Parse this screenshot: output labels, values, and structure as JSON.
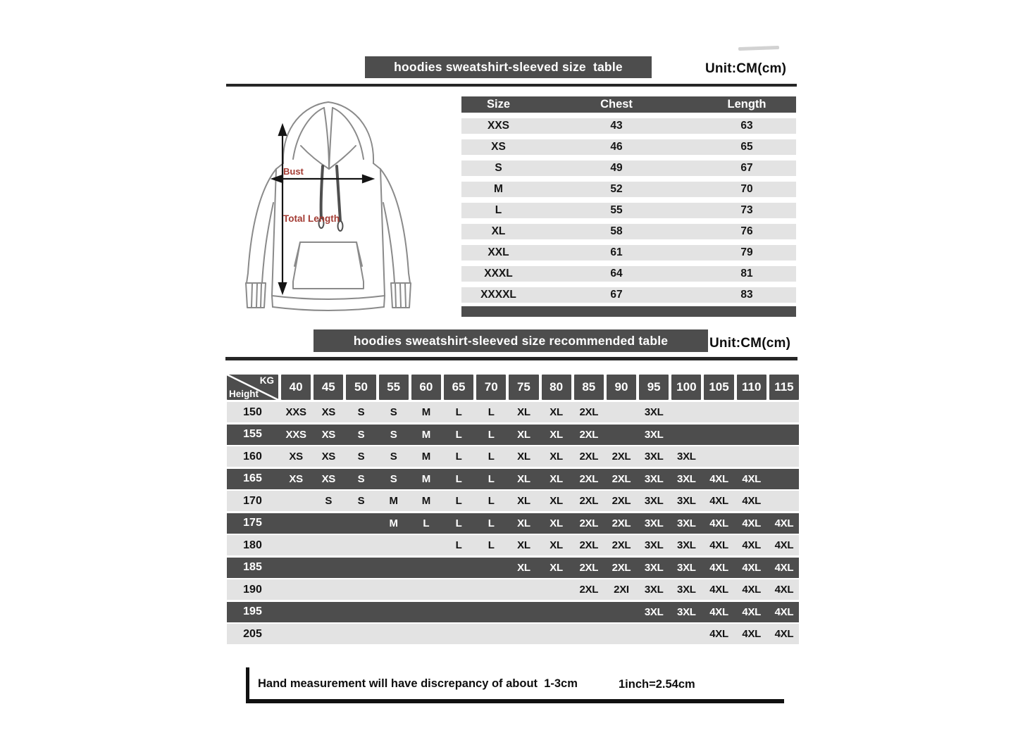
{
  "colors": {
    "dark_gray": "#4d4d4d",
    "light_row": "#e3e3e3",
    "line": "#262626",
    "red_label": "#a33b33"
  },
  "section1": {
    "title": "hoodies sweatshirt-sleeved size  table",
    "unit": "Unit:CM(cm)",
    "diagram": {
      "bust_label": "Bust",
      "total_length_label": "Total Length"
    },
    "size_table": {
      "headers": [
        "Size",
        "Chest",
        "Length"
      ],
      "rows": [
        [
          "XXS",
          "43",
          "63"
        ],
        [
          "XS",
          "46",
          "65"
        ],
        [
          "S",
          "49",
          "67"
        ],
        [
          "M",
          "52",
          "70"
        ],
        [
          "L",
          "55",
          "73"
        ],
        [
          "XL",
          "58",
          "76"
        ],
        [
          "XXL",
          "61",
          "79"
        ],
        [
          "XXXL",
          "64",
          "81"
        ],
        [
          "XXXXL",
          "67",
          "83"
        ]
      ]
    }
  },
  "section2": {
    "title": "hoodies sweatshirt-sleeved size recommended table",
    "unit": "Unit:CM(cm)",
    "matrix": {
      "corner": {
        "top_right": "KG",
        "bottom_left": "Height"
      },
      "weights": [
        "40",
        "45",
        "50",
        "55",
        "60",
        "65",
        "70",
        "75",
        "80",
        "85",
        "90",
        "95",
        "100",
        "105",
        "110",
        "115"
      ],
      "rows": [
        {
          "height": "150",
          "cells": [
            "XXS",
            "XS",
            "S",
            "S",
            "M",
            "L",
            "L",
            "XL",
            "XL",
            "2XL",
            "",
            "3XL",
            "",
            "",
            "",
            ""
          ]
        },
        {
          "height": "155",
          "cells": [
            "XXS",
            "XS",
            "S",
            "S",
            "M",
            "L",
            "L",
            "XL",
            "XL",
            "2XL",
            "",
            "3XL",
            "",
            "",
            "",
            ""
          ]
        },
        {
          "height": "160",
          "cells": [
            "XS",
            "XS",
            "S",
            "S",
            "M",
            "L",
            "L",
            "XL",
            "XL",
            "2XL",
            "2XL",
            "3XL",
            "3XL",
            "",
            "",
            ""
          ]
        },
        {
          "height": "165",
          "cells": [
            "XS",
            "XS",
            "S",
            "S",
            "M",
            "L",
            "L",
            "XL",
            "XL",
            "2XL",
            "2XL",
            "3XL",
            "3XL",
            "4XL",
            "4XL",
            ""
          ]
        },
        {
          "height": "170",
          "cells": [
            "",
            "S",
            "S",
            "M",
            "M",
            "L",
            "L",
            "XL",
            "XL",
            "2XL",
            "2XL",
            "3XL",
            "3XL",
            "4XL",
            "4XL",
            ""
          ]
        },
        {
          "height": "175",
          "cells": [
            "",
            "",
            "",
            "M",
            "L",
            "L",
            "L",
            "XL",
            "XL",
            "2XL",
            "2XL",
            "3XL",
            "3XL",
            "4XL",
            "4XL",
            "4XL"
          ]
        },
        {
          "height": "180",
          "cells": [
            "",
            "",
            "",
            "",
            "",
            "L",
            "L",
            "XL",
            "XL",
            "2XL",
            "2XL",
            "3XL",
            "3XL",
            "4XL",
            "4XL",
            "4XL"
          ]
        },
        {
          "height": "185",
          "cells": [
            "",
            "",
            "",
            "",
            "",
            "",
            "",
            "XL",
            "XL",
            "2XL",
            "2XL",
            "3XL",
            "3XL",
            "4XL",
            "4XL",
            "4XL"
          ]
        },
        {
          "height": "190",
          "cells": [
            "",
            "",
            "",
            "",
            "",
            "",
            "",
            "",
            "",
            "2XL",
            "2XI",
            "3XL",
            "3XL",
            "4XL",
            "4XL",
            "4XL"
          ]
        },
        {
          "height": "195",
          "cells": [
            "",
            "",
            "",
            "",
            "",
            "",
            "",
            "",
            "",
            "",
            "",
            "3XL",
            "3XL",
            "4XL",
            "4XL",
            "4XL"
          ]
        },
        {
          "height": "205",
          "cells": [
            "",
            "",
            "",
            "",
            "",
            "",
            "",
            "",
            "",
            "",
            "",
            "",
            "",
            "4XL",
            "4XL",
            "4XL"
          ]
        }
      ]
    }
  },
  "footer": {
    "note": "Hand measurement will have discrepancy of about  1-3cm",
    "conversion": "1inch=2.54cm"
  }
}
